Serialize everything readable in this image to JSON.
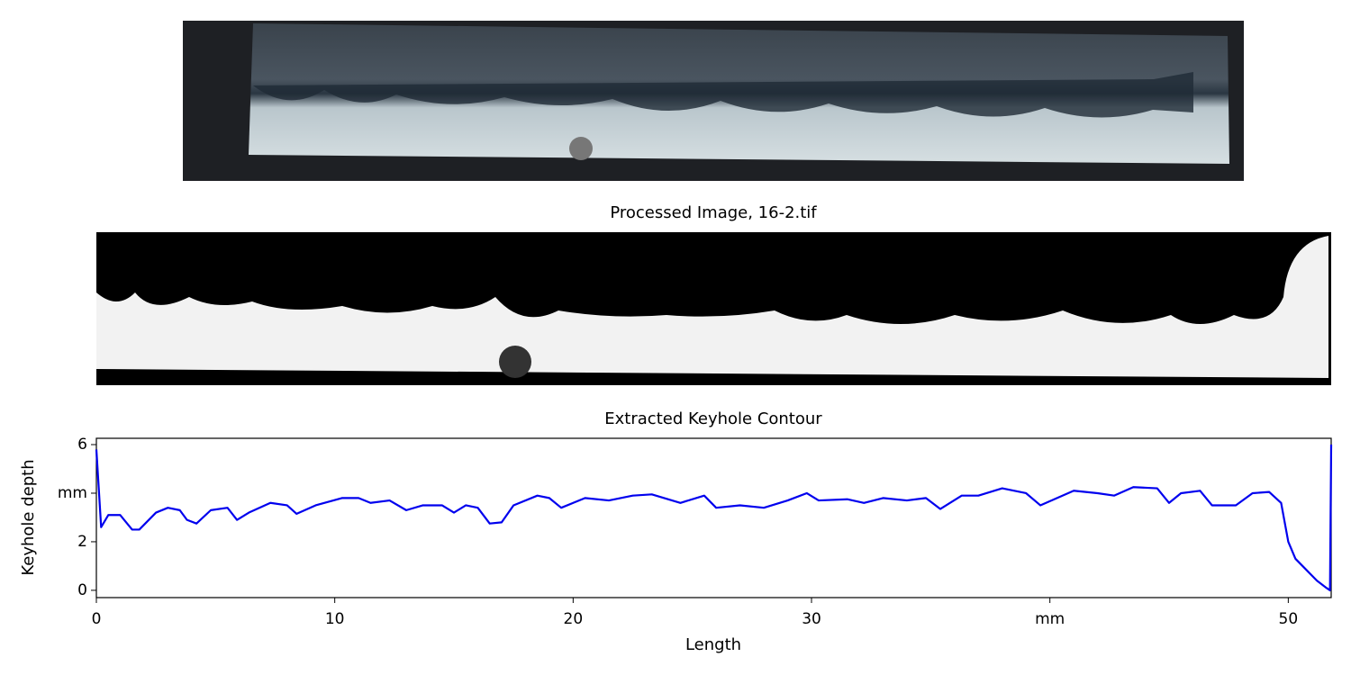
{
  "images": {
    "processed_title": "Processed Image, 16-2.tif"
  },
  "chart_data": {
    "type": "line",
    "title": "Extracted Keyhole Contour",
    "x_label": "Length",
    "y_label": "Keyhole depth",
    "xlim": [
      0,
      51.8
    ],
    "ylim": [
      -0.3,
      6.26
    ],
    "xticks": [
      0,
      10,
      20,
      30,
      {
        "value": 40,
        "label": "mm"
      },
      50
    ],
    "yticks": [
      0,
      2,
      {
        "value": 4,
        "label": "mm"
      },
      6
    ],
    "grid": false,
    "series": [
      {
        "name": "Keyhole contour",
        "color": "#0000ee",
        "x": [
          0,
          0.2,
          0.5,
          1,
          1.5,
          1.8,
          2.5,
          3,
          3.5,
          3.8,
          4.2,
          4.8,
          5.5,
          5.9,
          6.4,
          7.3,
          8,
          8.4,
          9.2,
          10.3,
          11,
          11.5,
          12.3,
          13,
          13.7,
          14.5,
          15,
          15.5,
          16,
          16.5,
          17,
          17.5,
          18.5,
          19,
          19.5,
          20.5,
          21.5,
          22.5,
          23.3,
          24.5,
          25.5,
          26,
          27,
          28,
          29,
          29.8,
          30.3,
          31.5,
          32.2,
          33,
          34,
          34.8,
          35.4,
          36.3,
          37,
          38,
          39,
          39.6,
          40.3,
          41,
          42,
          42.7,
          43.5,
          44.5,
          45,
          45.5,
          46.3,
          46.8,
          47.8,
          48.5,
          49.2,
          49.7,
          50,
          50.3,
          50.8,
          51.2,
          51.6,
          51.75,
          51.8
        ],
        "values": [
          5.8,
          2.6,
          3.1,
          3.1,
          2.5,
          2.5,
          3.2,
          3.4,
          3.3,
          2.9,
          2.75,
          3.3,
          3.4,
          2.9,
          3.2,
          3.6,
          3.5,
          3.15,
          3.5,
          3.8,
          3.8,
          3.6,
          3.7,
          3.3,
          3.5,
          3.5,
          3.2,
          3.5,
          3.4,
          2.75,
          2.8,
          3.5,
          3.9,
          3.8,
          3.4,
          3.8,
          3.7,
          3.9,
          3.95,
          3.6,
          3.9,
          3.4,
          3.5,
          3.4,
          3.7,
          4.0,
          3.7,
          3.75,
          3.6,
          3.8,
          3.7,
          3.8,
          3.35,
          3.9,
          3.9,
          4.2,
          4.0,
          3.5,
          3.8,
          4.1,
          4.0,
          3.9,
          4.25,
          4.2,
          3.6,
          4.0,
          4.1,
          3.5,
          3.5,
          4.0,
          4.05,
          3.6,
          2.0,
          1.3,
          0.8,
          0.4,
          0.1,
          0,
          6.0
        ]
      }
    ]
  }
}
